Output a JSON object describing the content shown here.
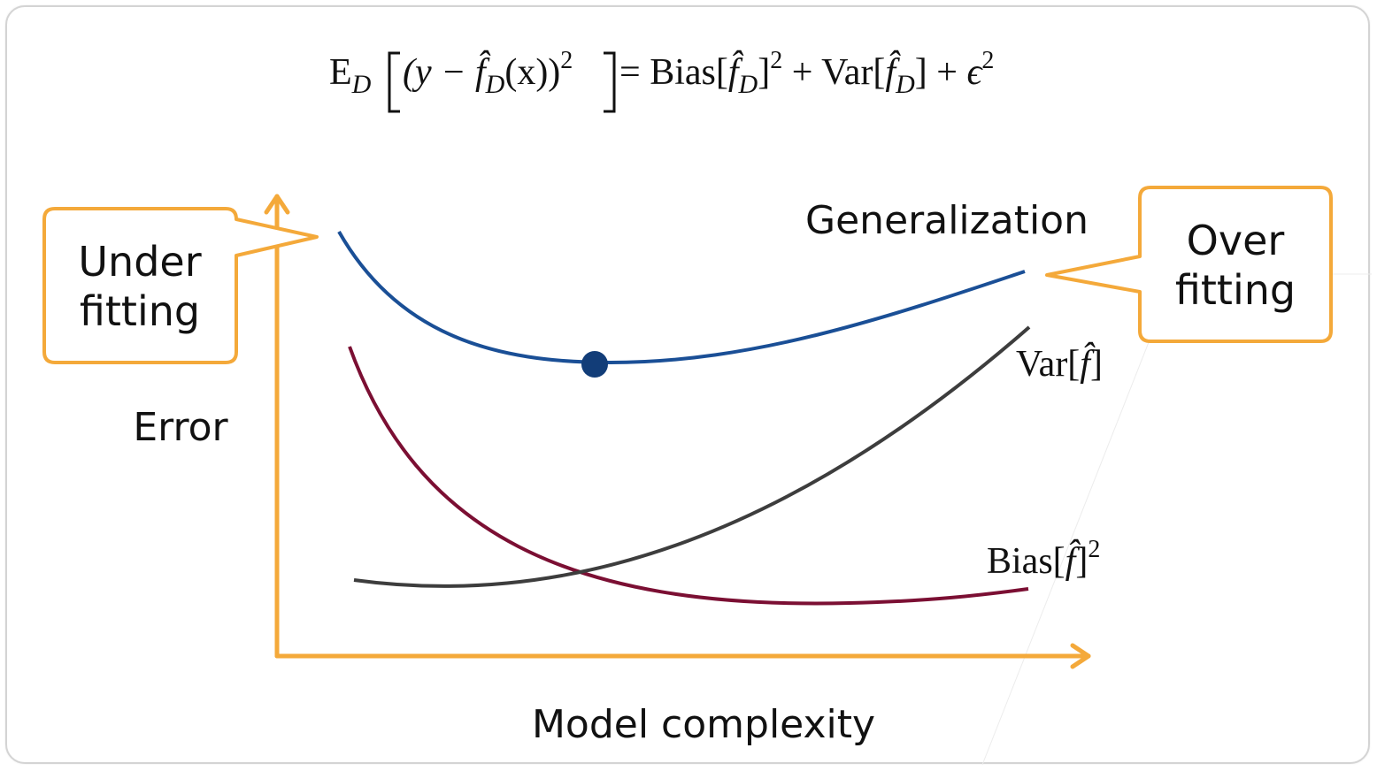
{
  "formula": {
    "lhs_E": "E",
    "lhs_sub": "D",
    "lhs_inner": "(y − ",
    "f_hat": "f̂",
    "f_sub": "D",
    "lhs_inner_tail": "(x))",
    "lhs_sup": "2",
    "equals": " = ",
    "bias_word": "Bias[",
    "bias_close": "]",
    "bias_sup": "2",
    "plus1": " + ",
    "var_word": "Var[",
    "var_close": "]",
    "plus2": " + ",
    "epsilon": "ϵ",
    "eps_sup": "2"
  },
  "labels": {
    "generalization": "Generalization",
    "under_line1": "Under",
    "under_line2": "fitting",
    "over_line1": "Over",
    "over_line2": "fitting",
    "error": "Error",
    "model_complexity": "Model complexity",
    "var_label": "Var[",
    "var_label_f": "f̂",
    "var_label_close": "]",
    "bias_label": "Bias[",
    "bias_label_f": "f̂",
    "bias_label_close": "]",
    "bias_label_sup": "2"
  },
  "colors": {
    "axis": "#f4a93a",
    "generalization_curve": "#1a4f96",
    "bias_curve": "#7b0f33",
    "variance_curve": "#3d3d3d",
    "optimum_dot": "#123d78",
    "callout_border": "#f4a93a"
  }
}
